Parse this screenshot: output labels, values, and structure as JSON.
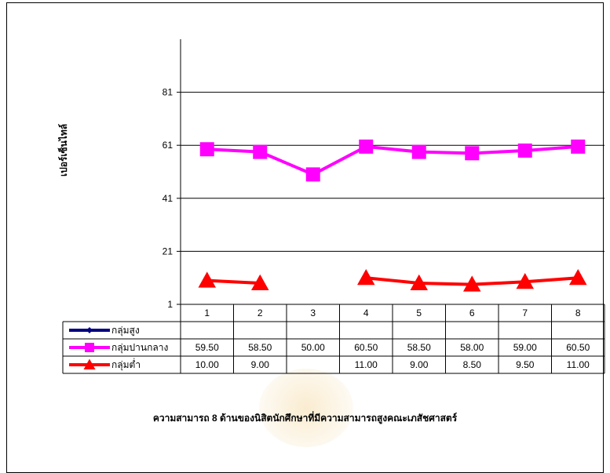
{
  "caption": "ความสามารถ 8 ด้านของนิสิตนักศึกษาที่มีความสามารถสูงคณะเภสัชศาสตร์",
  "chart_data": {
    "type": "line",
    "title": "",
    "xlabel": "",
    "ylabel": "เปอร์เซ็นไทล์",
    "ylim": [
      1,
      101
    ],
    "yticks": [
      "1",
      "21",
      "41",
      "61",
      "81"
    ],
    "grid": true,
    "legend": "table-below",
    "categories": [
      "1",
      "2",
      "3",
      "4",
      "5",
      "6",
      "7",
      "8"
    ],
    "series": [
      {
        "name": "กลุ่มสูง",
        "color": "#000080",
        "marker": "diamond",
        "values": [
          null,
          null,
          null,
          null,
          null,
          null,
          null,
          null
        ],
        "labels": [
          "",
          "",
          "",
          "",
          "",
          "",
          "",
          ""
        ]
      },
      {
        "name": "กลุ่มปานกลาง",
        "color": "#ff00ff",
        "marker": "square",
        "values": [
          59.5,
          58.5,
          50.0,
          60.5,
          58.5,
          58.0,
          59.0,
          60.5
        ],
        "labels": [
          "59.50",
          "58.50",
          "50.00",
          "60.50",
          "58.50",
          "58.00",
          "59.00",
          "60.50"
        ]
      },
      {
        "name": "กลุ่มต่ำ",
        "color": "#ff0000",
        "marker": "triangle",
        "values": [
          10.0,
          9.0,
          null,
          11.0,
          9.0,
          8.5,
          9.5,
          11.0
        ],
        "labels": [
          "10.00",
          "9.00",
          "",
          "11.00",
          "9.00",
          "8.50",
          "9.50",
          "11.00"
        ]
      }
    ]
  }
}
